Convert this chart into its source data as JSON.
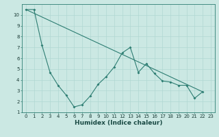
{
  "xlabel": "Humidex (Indice chaleur)",
  "bg_color": "#cbe8e3",
  "grid_color": "#b0d8d2",
  "line_color": "#2d7d72",
  "xlim_min": -0.5,
  "xlim_max": 23.5,
  "ylim_min": 1,
  "ylim_max": 11,
  "yticks": [
    1,
    2,
    3,
    4,
    5,
    6,
    7,
    8,
    9,
    10
  ],
  "xticks": [
    0,
    1,
    2,
    3,
    4,
    5,
    6,
    7,
    8,
    9,
    10,
    11,
    12,
    13,
    14,
    15,
    16,
    17,
    18,
    19,
    20,
    21,
    22,
    23
  ],
  "series1_x": [
    0,
    1,
    2,
    3,
    4,
    5,
    6,
    7,
    8,
    9,
    10,
    11,
    12,
    13,
    14,
    15,
    16,
    17,
    18,
    19,
    20,
    21,
    22
  ],
  "series1_y": [
    10.5,
    10.5,
    7.2,
    4.7,
    3.5,
    2.6,
    1.5,
    1.7,
    2.5,
    3.6,
    4.3,
    5.2,
    6.5,
    7.0,
    4.7,
    5.5,
    4.6,
    3.9,
    3.8,
    3.5,
    3.5,
    2.3,
    2.9
  ],
  "series2_x": [
    0,
    22
  ],
  "series2_y": [
    10.5,
    2.9
  ],
  "tick_fontsize": 5.0,
  "xlabel_fontsize": 6.5
}
